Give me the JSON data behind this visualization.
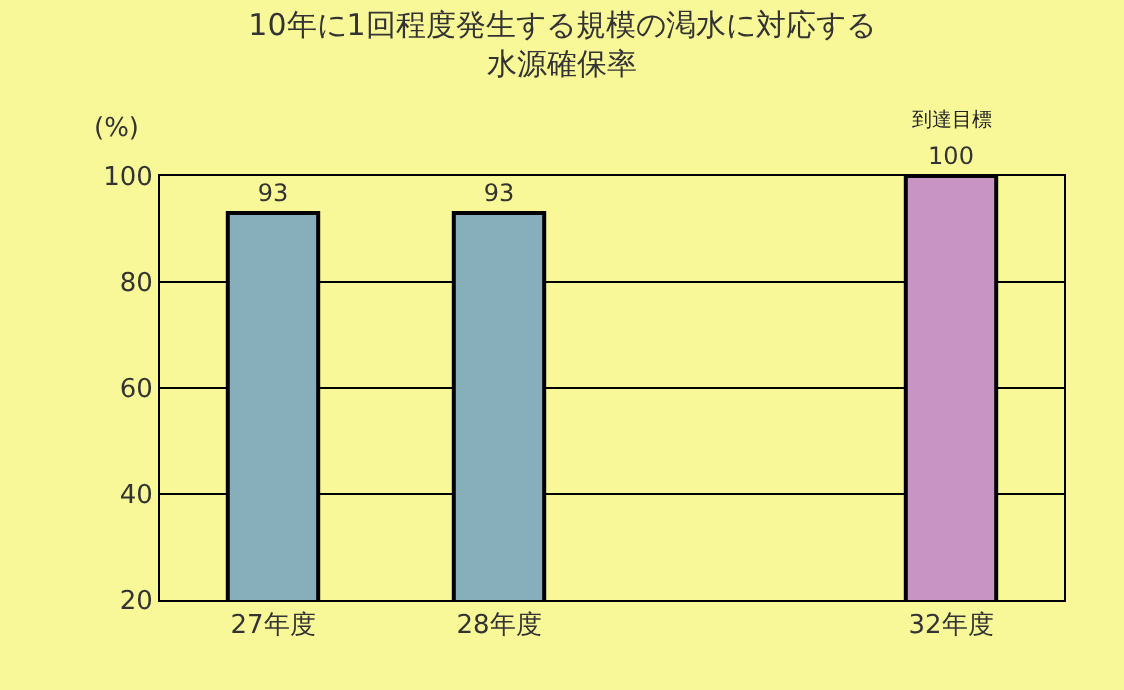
{
  "chart_data": {
    "type": "bar",
    "title": "10年に1回程度発生する規模の渇水に対応する水源確保率",
    "ylabel": "(%)",
    "categories": [
      "27年度",
      "28年度",
      null,
      "32年度"
    ],
    "values": [
      93,
      93,
      null,
      100
    ],
    "colors": [
      "#86aebb",
      "#86aebb",
      "#86aebb",
      "#c894c4"
    ],
    "data_labels": true,
    "annotations": [
      {
        "text": "到達目標",
        "x": "32年度",
        "y": 100
      }
    ],
    "ylim": [
      20,
      100
    ],
    "yticks": [
      20,
      40,
      60,
      80,
      100
    ],
    "grid": "y"
  }
}
